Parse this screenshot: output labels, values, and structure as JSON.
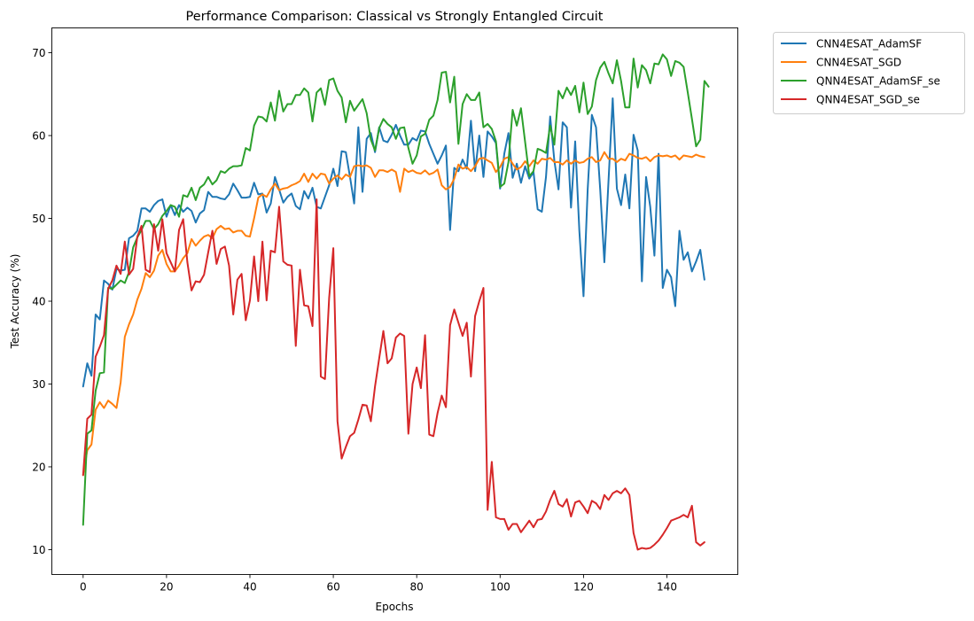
{
  "chart_data": {
    "type": "line",
    "title": "Performance Comparison: Classical vs Strongly Entangled Circuit",
    "xlabel": "Epochs",
    "ylabel": "Test Accuracy (%)",
    "xlim": [
      -7.5,
      157
    ],
    "ylim": [
      7,
      73
    ],
    "xticks": [
      0,
      20,
      40,
      60,
      80,
      100,
      120,
      140
    ],
    "yticks": [
      10,
      20,
      30,
      40,
      50,
      60,
      70
    ],
    "grid": false,
    "legend_position": "outside-top-right",
    "series": [
      {
        "name": "CNN4ESAT_AdamSF",
        "color": "#1f77b4",
        "values": [
          29.7,
          32.5,
          31.0,
          38.4,
          37.8,
          42.5,
          42.1,
          41.4,
          43.9,
          43.7,
          43.8,
          47.6,
          47.9,
          48.5,
          51.2,
          51.2,
          50.8,
          51.6,
          52.1,
          52.3,
          50.2,
          51.6,
          50.4,
          51.6,
          50.8,
          51.3,
          50.9,
          49.5,
          50.6,
          51.0,
          53.2,
          52.6,
          52.6,
          52.4,
          52.3,
          52.9,
          54.2,
          53.4,
          52.5,
          52.5,
          52.6,
          54.3,
          52.9,
          53.0,
          50.7,
          51.8,
          55.0,
          53.5,
          51.9,
          52.6,
          53.0,
          51.5,
          51.1,
          53.3,
          52.4,
          53.7,
          51.4,
          51.2,
          52.6,
          54.0,
          56.0,
          53.9,
          58.1,
          58.0,
          55.0,
          51.8,
          61.0,
          53.2,
          59.6,
          60.3,
          58.0,
          61.0,
          59.4,
          59.2,
          60.1,
          61.3,
          60.0,
          58.9,
          58.9,
          59.7,
          59.4,
          60.6,
          60.5,
          59.0,
          57.8,
          56.6,
          57.6,
          58.8,
          48.6,
          56.1,
          55.7,
          57.1,
          56.0,
          61.8,
          55.7,
          60.0,
          55.0,
          60.5,
          59.9,
          59.1,
          53.6,
          57.8,
          60.3,
          54.9,
          56.6,
          54.3,
          56.3,
          54.8,
          55.6,
          51.1,
          50.8,
          55.0,
          62.3,
          57.0,
          53.5,
          61.6,
          61.0,
          51.3,
          59.3,
          48.5,
          40.6,
          53.5,
          62.5,
          61.0,
          53.5,
          44.7,
          54.6,
          64.5,
          53.6,
          51.6,
          55.3,
          51.2,
          60.1,
          58.2,
          42.4,
          55.0,
          51.4,
          45.5,
          57.8,
          41.6,
          43.8,
          42.9,
          39.4,
          48.5,
          45.0,
          45.9,
          43.6,
          44.8,
          46.2,
          42.6
        ]
      },
      {
        "name": "CNN4ESAT_SGD",
        "color": "#ff7f0e",
        "values": [
          19.0,
          22.0,
          22.7,
          26.9,
          27.8,
          27.1,
          28.0,
          27.6,
          27.1,
          30.2,
          35.7,
          37.2,
          38.4,
          40.2,
          41.5,
          43.4,
          42.9,
          43.7,
          45.5,
          46.2,
          44.5,
          43.6,
          43.6,
          44.3,
          45.2,
          45.8,
          47.5,
          46.7,
          47.3,
          47.8,
          48.0,
          47.6,
          48.7,
          49.1,
          48.7,
          48.8,
          48.3,
          48.5,
          48.5,
          47.9,
          47.8,
          50.0,
          52.5,
          52.9,
          52.6,
          53.5,
          54.2,
          53.4,
          53.6,
          53.7,
          54.0,
          54.2,
          54.5,
          55.4,
          54.4,
          55.4,
          54.8,
          55.4,
          55.3,
          54.2,
          54.8,
          55.2,
          54.7,
          55.3,
          55.0,
          56.3,
          56.4,
          56.3,
          56.4,
          56.1,
          55.0,
          55.8,
          55.8,
          55.6,
          55.9,
          55.6,
          53.2,
          56.0,
          55.6,
          55.8,
          55.5,
          55.4,
          55.8,
          55.3,
          55.5,
          55.9,
          54.0,
          53.5,
          53.8,
          54.8,
          56.5,
          56.0,
          56.2,
          55.7,
          56.3,
          57.2,
          57.3,
          57.0,
          56.7,
          55.6,
          56.2,
          57.2,
          57.4,
          56.6,
          55.9,
          56.2,
          56.9,
          56.3,
          57.0,
          56.6,
          57.2,
          57.1,
          57.3,
          56.8,
          56.8,
          56.5,
          57.0,
          56.6,
          57.0,
          56.7,
          56.8,
          57.2,
          57.4,
          56.8,
          57.0,
          58.0,
          57.2,
          57.2,
          56.8,
          57.2,
          57.0,
          57.8,
          57.6,
          57.3,
          57.2,
          57.4,
          56.9,
          57.4,
          57.6,
          57.5,
          57.6,
          57.4,
          57.6,
          57.1,
          57.6,
          57.5,
          57.4,
          57.7,
          57.5,
          57.4
        ]
      },
      {
        "name": "QNN4ESAT_AdamSF_se",
        "color": "#2ca02c",
        "values": [
          13.0,
          24.0,
          24.4,
          29.2,
          31.3,
          31.4,
          41.6,
          41.5,
          42.0,
          42.5,
          42.2,
          43.5,
          46.5,
          47.7,
          48.6,
          49.7,
          49.7,
          48.7,
          49.3,
          50.3,
          50.9,
          51.6,
          51.4,
          50.2,
          52.8,
          52.6,
          53.7,
          52.2,
          53.7,
          54.1,
          55.0,
          54.1,
          54.6,
          55.7,
          55.5,
          56.0,
          56.3,
          56.3,
          56.4,
          58.5,
          58.2,
          61.2,
          62.3,
          62.2,
          61.7,
          64.0,
          61.8,
          65.4,
          62.9,
          63.8,
          63.8,
          64.9,
          64.9,
          65.7,
          65.2,
          61.7,
          65.2,
          65.7,
          63.7,
          66.7,
          66.9,
          65.4,
          64.6,
          61.6,
          64.2,
          63.0,
          63.7,
          64.4,
          62.7,
          59.5,
          58.2,
          60.9,
          62.0,
          61.4,
          61.0,
          59.6,
          60.9,
          61.0,
          58.5,
          56.6,
          57.6,
          59.9,
          60.2,
          61.9,
          62.4,
          64.3,
          67.6,
          67.7,
          64.0,
          67.1,
          59.0,
          63.8,
          65.0,
          64.3,
          64.3,
          65.2,
          61.0,
          61.4,
          60.8,
          59.3,
          53.8,
          54.2,
          56.8,
          63.1,
          61.2,
          63.3,
          59.2,
          55.1,
          55.7,
          58.4,
          58.2,
          57.9,
          61.2,
          58.9,
          65.4,
          64.5,
          65.8,
          64.9,
          66.0,
          62.8,
          66.4,
          62.6,
          63.5,
          66.7,
          68.2,
          68.9,
          67.5,
          66.3,
          69.1,
          66.6,
          63.4,
          63.4,
          69.3,
          65.8,
          68.5,
          67.9,
          66.3,
          68.7,
          68.6,
          69.8,
          69.2,
          67.2,
          69.0,
          68.8,
          68.3,
          65.2,
          62.0,
          58.7,
          59.5,
          66.6,
          65.9
        ]
      },
      {
        "name": "QNN4ESAT_SGD_se",
        "color": "#d62728",
        "values": [
          19.0,
          25.8,
          26.3,
          33.3,
          34.5,
          35.9,
          41.5,
          42.5,
          44.3,
          43.3,
          47.2,
          43.2,
          43.9,
          47.8,
          49.1,
          43.8,
          43.5,
          49.3,
          46.1,
          49.9,
          45.8,
          44.7,
          43.6,
          48.6,
          49.9,
          44.7,
          41.3,
          42.4,
          42.3,
          43.2,
          45.9,
          48.5,
          44.5,
          46.3,
          46.6,
          44.3,
          38.4,
          42.6,
          43.3,
          37.7,
          40.1,
          45.4,
          40.0,
          47.2,
          40.1,
          46.1,
          45.9,
          51.4,
          44.8,
          44.4,
          44.3,
          34.6,
          43.8,
          39.5,
          39.4,
          37.0,
          52.3,
          30.9,
          30.6,
          40.4,
          46.4,
          25.5,
          21.0,
          22.4,
          23.7,
          24.1,
          25.7,
          27.5,
          27.4,
          25.5,
          29.7,
          33.1,
          36.4,
          32.5,
          33.1,
          35.6,
          36.1,
          35.8,
          24.0,
          30.0,
          32.0,
          29.5,
          35.9,
          23.9,
          23.7,
          26.5,
          28.6,
          27.2,
          37.1,
          39.0,
          37.4,
          35.8,
          37.4,
          30.9,
          38.2,
          40.0,
          41.6,
          14.8,
          20.6,
          13.9,
          13.7,
          13.7,
          12.4,
          13.1,
          13.1,
          12.1,
          12.8,
          13.5,
          12.7,
          13.6,
          13.7,
          14.6,
          16.0,
          17.1,
          15.5,
          15.2,
          16.1,
          14.0,
          15.7,
          15.9,
          15.2,
          14.4,
          15.9,
          15.6,
          14.9,
          16.6,
          16.0,
          16.8,
          17.1,
          16.8,
          17.4,
          16.6,
          12.0,
          10.0,
          10.2,
          10.1,
          10.2,
          10.6,
          11.1,
          11.8,
          12.6,
          13.5,
          13.7,
          13.9,
          14.2,
          13.9,
          15.3,
          10.9,
          10.5,
          10.9
        ]
      }
    ]
  }
}
